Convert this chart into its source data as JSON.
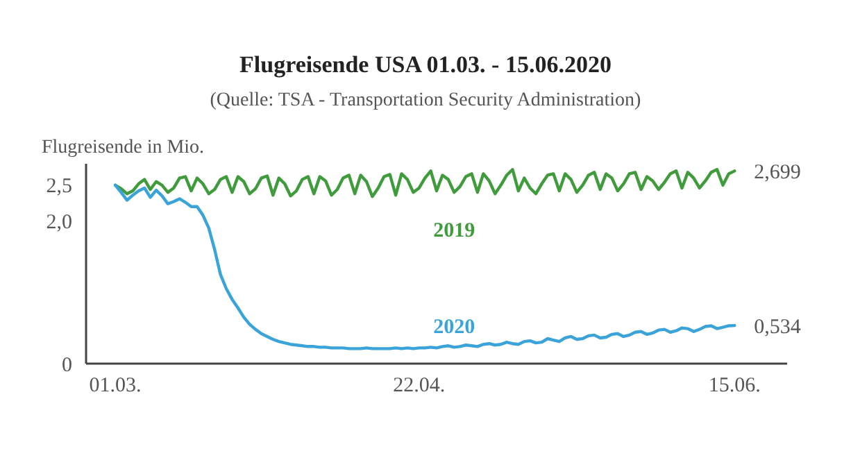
{
  "chart_data": {
    "type": "line",
    "title": "Flugreisende USA 01.03. - 15.06.2020",
    "subtitle": "(Quelle: TSA - Transportation Security Administration)",
    "ylabel": "Flugreisende in Mio.",
    "x": [
      "2020-03-01",
      "2020-03-02",
      "2020-03-03",
      "2020-03-04",
      "2020-03-05",
      "2020-03-06",
      "2020-03-07",
      "2020-03-08",
      "2020-03-09",
      "2020-03-10",
      "2020-03-11",
      "2020-03-12",
      "2020-03-13",
      "2020-03-14",
      "2020-03-15",
      "2020-03-16",
      "2020-03-17",
      "2020-03-18",
      "2020-03-19",
      "2020-03-20",
      "2020-03-21",
      "2020-03-22",
      "2020-03-23",
      "2020-03-24",
      "2020-03-25",
      "2020-03-26",
      "2020-03-27",
      "2020-03-28",
      "2020-03-29",
      "2020-03-30",
      "2020-03-31",
      "2020-04-01",
      "2020-04-02",
      "2020-04-03",
      "2020-04-04",
      "2020-04-05",
      "2020-04-06",
      "2020-04-07",
      "2020-04-08",
      "2020-04-09",
      "2020-04-10",
      "2020-04-11",
      "2020-04-12",
      "2020-04-13",
      "2020-04-14",
      "2020-04-15",
      "2020-04-16",
      "2020-04-17",
      "2020-04-18",
      "2020-04-19",
      "2020-04-20",
      "2020-04-21",
      "2020-04-22",
      "2020-04-23",
      "2020-04-24",
      "2020-04-25",
      "2020-04-26",
      "2020-04-27",
      "2020-04-28",
      "2020-04-29",
      "2020-04-30",
      "2020-05-01",
      "2020-05-02",
      "2020-05-03",
      "2020-05-04",
      "2020-05-05",
      "2020-05-06",
      "2020-05-07",
      "2020-05-08",
      "2020-05-09",
      "2020-05-10",
      "2020-05-11",
      "2020-05-12",
      "2020-05-13",
      "2020-05-14",
      "2020-05-15",
      "2020-05-16",
      "2020-05-17",
      "2020-05-18",
      "2020-05-19",
      "2020-05-20",
      "2020-05-21",
      "2020-05-22",
      "2020-05-23",
      "2020-05-24",
      "2020-05-25",
      "2020-05-26",
      "2020-05-27",
      "2020-05-28",
      "2020-05-29",
      "2020-05-30",
      "2020-05-31",
      "2020-06-01",
      "2020-06-02",
      "2020-06-03",
      "2020-06-04",
      "2020-06-05",
      "2020-06-06",
      "2020-06-07",
      "2020-06-08",
      "2020-06-09",
      "2020-06-10",
      "2020-06-11",
      "2020-06-12",
      "2020-06-13",
      "2020-06-14",
      "2020-06-15"
    ],
    "series": [
      {
        "name": "2019",
        "color": "#3f9b3c",
        "values": [
          2.5,
          2.45,
          2.38,
          2.42,
          2.52,
          2.58,
          2.44,
          2.55,
          2.5,
          2.4,
          2.46,
          2.6,
          2.62,
          2.42,
          2.6,
          2.52,
          2.38,
          2.44,
          2.58,
          2.62,
          2.4,
          2.62,
          2.55,
          2.38,
          2.45,
          2.6,
          2.63,
          2.36,
          2.6,
          2.52,
          2.35,
          2.42,
          2.58,
          2.62,
          2.38,
          2.62,
          2.56,
          2.36,
          2.44,
          2.6,
          2.64,
          2.38,
          2.64,
          2.55,
          2.34,
          2.46,
          2.62,
          2.65,
          2.36,
          2.66,
          2.58,
          2.4,
          2.46,
          2.6,
          2.7,
          2.42,
          2.64,
          2.58,
          2.4,
          2.48,
          2.62,
          2.66,
          2.4,
          2.66,
          2.56,
          2.38,
          2.5,
          2.64,
          2.72,
          2.42,
          2.6,
          2.46,
          2.38,
          2.52,
          2.64,
          2.66,
          2.42,
          2.66,
          2.58,
          2.4,
          2.5,
          2.64,
          2.68,
          2.44,
          2.66,
          2.6,
          2.42,
          2.52,
          2.66,
          2.68,
          2.44,
          2.62,
          2.56,
          2.44,
          2.54,
          2.66,
          2.7,
          2.46,
          2.68,
          2.6,
          2.46,
          2.56,
          2.68,
          2.72,
          2.5,
          2.66,
          2.699
        ]
      },
      {
        "name": "2020",
        "color": "#3aa3d9",
        "values": [
          2.5,
          2.4,
          2.29,
          2.36,
          2.42,
          2.46,
          2.33,
          2.43,
          2.35,
          2.24,
          2.27,
          2.31,
          2.26,
          2.2,
          2.2,
          2.08,
          1.9,
          1.6,
          1.25,
          1.05,
          0.9,
          0.78,
          0.65,
          0.55,
          0.48,
          0.42,
          0.38,
          0.34,
          0.31,
          0.29,
          0.27,
          0.26,
          0.25,
          0.24,
          0.24,
          0.23,
          0.23,
          0.22,
          0.22,
          0.22,
          0.21,
          0.21,
          0.21,
          0.22,
          0.21,
          0.21,
          0.21,
          0.21,
          0.22,
          0.21,
          0.22,
          0.21,
          0.22,
          0.22,
          0.23,
          0.22,
          0.24,
          0.25,
          0.23,
          0.24,
          0.26,
          0.25,
          0.24,
          0.27,
          0.28,
          0.26,
          0.27,
          0.3,
          0.28,
          0.27,
          0.31,
          0.32,
          0.29,
          0.3,
          0.35,
          0.33,
          0.31,
          0.36,
          0.38,
          0.34,
          0.35,
          0.39,
          0.4,
          0.36,
          0.37,
          0.41,
          0.42,
          0.38,
          0.4,
          0.44,
          0.45,
          0.41,
          0.43,
          0.47,
          0.48,
          0.44,
          0.46,
          0.5,
          0.49,
          0.45,
          0.48,
          0.52,
          0.53,
          0.49,
          0.51,
          0.53,
          0.534
        ]
      }
    ],
    "xlim": [
      "2020-02-25",
      "2020-06-24"
    ],
    "xticks": [
      {
        "value": "2020-03-01",
        "label": "01.03."
      },
      {
        "value": "2020-04-22",
        "label": "22.04."
      },
      {
        "value": "2020-06-15",
        "label": "15.06."
      }
    ],
    "ylim": [
      0,
      2.8
    ],
    "yticks": [
      {
        "value": 0,
        "label": "0"
      },
      {
        "value": 2.0,
        "label": "2,0"
      },
      {
        "value": 2.5,
        "label": "2,5"
      }
    ],
    "annotations": [
      {
        "text": "2,699",
        "x": "2020-06-15",
        "y": 2.699
      },
      {
        "text": "0,534",
        "x": "2020-06-15",
        "y": 0.534
      }
    ],
    "grid": false,
    "legend": false,
    "marker": "none",
    "line_style": "solid"
  }
}
